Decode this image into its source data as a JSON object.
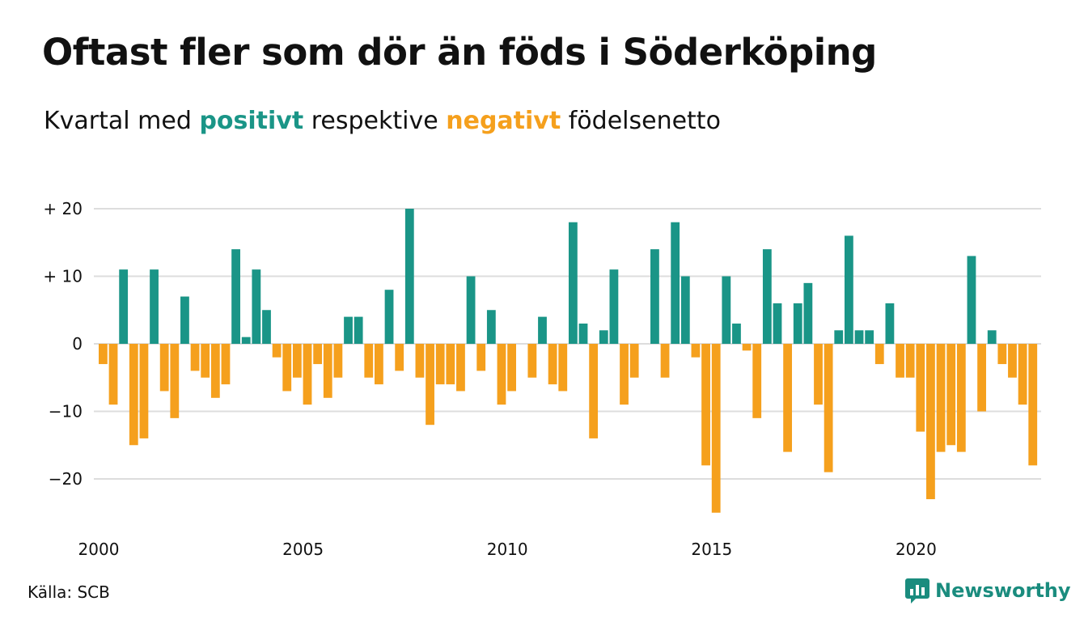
{
  "title": "Oftast fler som dör än föds i Söderköping",
  "subtitle": {
    "before": "Kvartal med",
    "positive_word": "positivt",
    "middle": "respektive",
    "negative_word": "negativt",
    "after": "födelsenetto"
  },
  "source": "Källa: SCB",
  "logo_text": "Newsworthy",
  "colors": {
    "positive": "#1a9587",
    "negative": "#f5a01d",
    "grid": "#dddddd",
    "logo": "#1a8c7e"
  },
  "chart_data": {
    "type": "bar",
    "title": "Oftast fler som dör än föds i Söderköping",
    "subtitle": "Kvartal med positivt respektive negativt födelsenetto",
    "xlabel": "",
    "ylabel": "",
    "x_start": "2000 Q1",
    "x_ticks": [
      "2000",
      "2005",
      "2010",
      "2015",
      "2020"
    ],
    "y_ticks": [
      {
        "value": 20,
        "label": "+ 20"
      },
      {
        "value": 10,
        "label": "+ 10"
      },
      {
        "value": 0,
        "label": "0"
      },
      {
        "value": -10,
        "label": "−10"
      },
      {
        "value": -20,
        "label": "−20"
      }
    ],
    "ylim": [
      -26,
      21
    ],
    "grid": true,
    "values": [
      -3,
      -9,
      11,
      -15,
      -14,
      11,
      -7,
      -11,
      7,
      -4,
      -5,
      -8,
      -6,
      14,
      1,
      11,
      5,
      -2,
      -7,
      -5,
      -9,
      -3,
      -8,
      -5,
      4,
      4,
      -5,
      -6,
      8,
      -4,
      20,
      -5,
      -12,
      -6,
      -6,
      -7,
      10,
      -4,
      5,
      -9,
      -7,
      0,
      -5,
      4,
      -6,
      -7,
      18,
      3,
      -14,
      2,
      11,
      -9,
      -5,
      0,
      14,
      -5,
      18,
      10,
      -2,
      -18,
      -25,
      10,
      3,
      -1,
      -11,
      14,
      6,
      -16,
      6,
      9,
      -9,
      -19,
      2,
      16,
      2,
      2,
      -3,
      6,
      -5,
      -5,
      -13,
      -23,
      -16,
      -15,
      -16,
      13,
      -10,
      2,
      -3,
      -5,
      -9,
      -18
    ]
  }
}
